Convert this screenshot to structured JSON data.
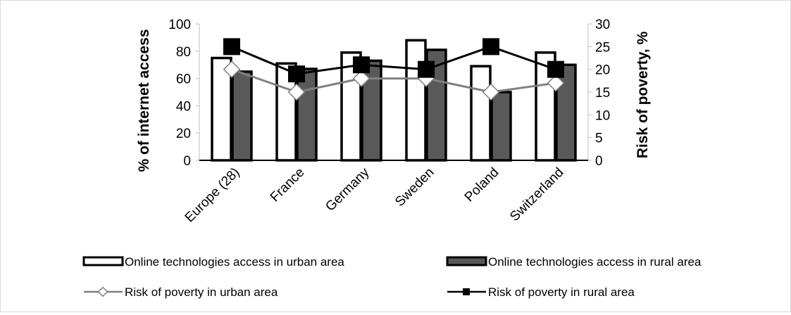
{
  "chart_data": {
    "type": "bar",
    "categories": [
      "Europe (28)",
      "France",
      "Germany",
      "Sweden",
      "Poland",
      "Switzerland"
    ],
    "series": [
      {
        "name": "Online technologies access in urban area",
        "kind": "bar",
        "axis": "left",
        "values": [
          75,
          71,
          79,
          88,
          69,
          79
        ],
        "fill": "#ffffff",
        "stroke": "#000000"
      },
      {
        "name": "Online technologies access in rural area",
        "kind": "bar",
        "axis": "left",
        "values": [
          65,
          67,
          73,
          81,
          50,
          70
        ],
        "fill": "#595959",
        "stroke": "#000000"
      },
      {
        "name": "Risk of poverty in urban area",
        "kind": "line",
        "axis": "right",
        "values": [
          20,
          15,
          18,
          18,
          15,
          17
        ],
        "color": "#808080",
        "marker": "diamond"
      },
      {
        "name": "Risk of poverty in rural area",
        "kind": "line",
        "axis": "right",
        "values": [
          25,
          19,
          21,
          20,
          25,
          20
        ],
        "color": "#000000",
        "marker": "square"
      }
    ],
    "ylabel": "% of internet access",
    "y2label": "Risk of poverty, %",
    "ylim": [
      0,
      100
    ],
    "y2lim": [
      0,
      30
    ],
    "yticks": [
      "0",
      "20",
      "40",
      "60",
      "80",
      "100"
    ],
    "y2ticks": [
      "0",
      "5",
      "10",
      "15",
      "20",
      "25",
      "30"
    ],
    "grid": false,
    "legend_position": "bottom"
  }
}
